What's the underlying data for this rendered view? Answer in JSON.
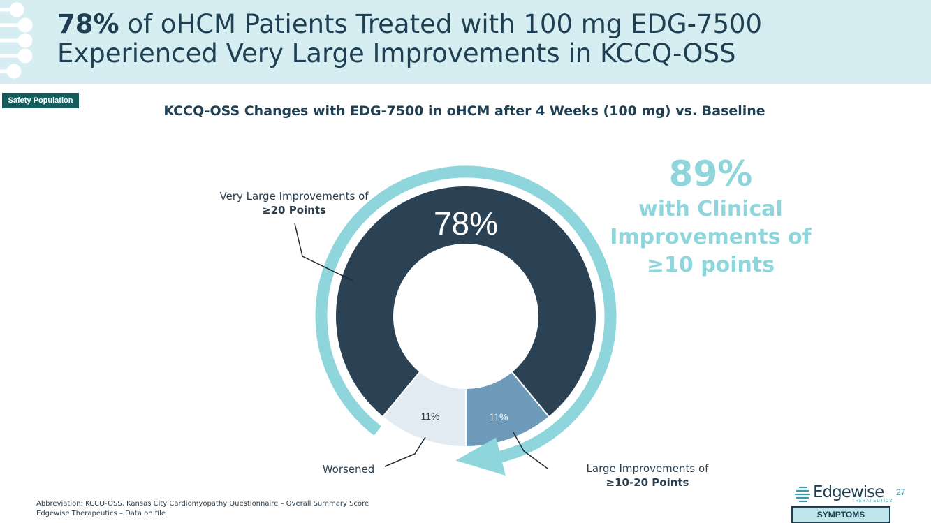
{
  "header": {
    "title_bold": "78%",
    "title_rest": " of oHCM Patients Treated with 100 mg EDG-7500",
    "title_line2": "Experienced Very Large Improvements in KCCQ-OSS"
  },
  "badge": "Safety Population",
  "chart_data": {
    "type": "pie",
    "variant": "donut",
    "title": "KCCQ-OSS Changes with EDG-7500 in oHCM after 4 Weeks (100 mg) vs. Baseline",
    "center_label": "78%",
    "slices": [
      {
        "name": "Very Large Improvements of ≥20 Points",
        "value": 78,
        "label": "78%",
        "color": "#2b4254"
      },
      {
        "name": "Large Improvements of ≥10-20 Points",
        "value": 11,
        "label": "11%",
        "color": "#6f9bbb"
      },
      {
        "name": "Worsened",
        "value": 11,
        "label": "11%",
        "color": "#e3ebf2"
      }
    ],
    "category_labels": {
      "very_large_line1": "Very Large Improvements of",
      "very_large_line2": "≥20 Points",
      "large_line1": "Large Improvements of",
      "large_line2": "≥10-20 Points",
      "worsened": "Worsened"
    },
    "arc_highlight_value": 89,
    "colors": {
      "arc": "#8fd6dc"
    }
  },
  "big_stat": {
    "percent": "89%",
    "line1": "with Clinical",
    "line2": "Improvements of",
    "line3": "≥10 points"
  },
  "footnotes": {
    "line1": "Abbreviation: KCCQ-OSS, Kansas City Cardiomyopathy Questionnaire – Overall Summary Score",
    "line2": "Edgewise Therapeutics – Data on file"
  },
  "logo": {
    "name": "Edgewise",
    "sub": "THERAPEUTICS"
  },
  "page_number": "27",
  "section_tag": "SYMPTOMS"
}
